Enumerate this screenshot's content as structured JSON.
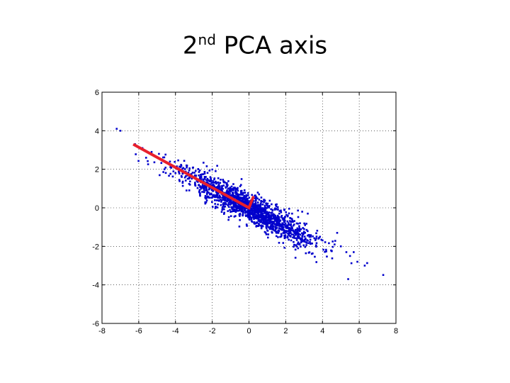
{
  "title": {
    "prefix": "2",
    "superscript": "nd",
    "suffix": " PCA axis"
  },
  "chart_data": {
    "type": "scatter",
    "xlim": [
      -8,
      8
    ],
    "ylim": [
      -6,
      6
    ],
    "x_ticks": [
      -8,
      -6,
      -4,
      -2,
      0,
      2,
      4,
      6,
      8
    ],
    "y_ticks": [
      6,
      4,
      2,
      0,
      -2,
      -4,
      -6
    ],
    "grid": true,
    "point_color": "#0000cc",
    "cloud": {
      "center": [
        0,
        0
      ],
      "principal_slope": -0.52,
      "count": 1600,
      "major_sd": 2.0,
      "minor_sd": 0.34
    },
    "outlier_points": [
      [
        -7.2,
        4.1
      ],
      [
        -7.0,
        4.0
      ],
      [
        -6.2,
        3.3
      ],
      [
        -5.8,
        3.1
      ],
      [
        -5.6,
        2.6
      ],
      [
        -5.3,
        2.9
      ],
      [
        -4.9,
        2.8
      ],
      [
        -4.6,
        2.0
      ],
      [
        -4.3,
        2.4
      ],
      [
        -4.0,
        1.8
      ],
      [
        -3.4,
        0.9
      ],
      [
        3.2,
        -0.3
      ],
      [
        4.8,
        -1.3
      ],
      [
        5.0,
        -2.0
      ],
      [
        5.3,
        -2.3
      ],
      [
        5.5,
        -2.5
      ],
      [
        5.7,
        -2.3
      ],
      [
        5.9,
        -2.8
      ],
      [
        6.3,
        -3.0
      ],
      [
        5.4,
        -3.7
      ]
    ],
    "axis_line": {
      "color": "#e8202c",
      "points": [
        [
          -6.3,
          3.3
        ],
        [
          0.0,
          0.0
        ],
        [
          0.25,
          0.6
        ]
      ]
    }
  }
}
